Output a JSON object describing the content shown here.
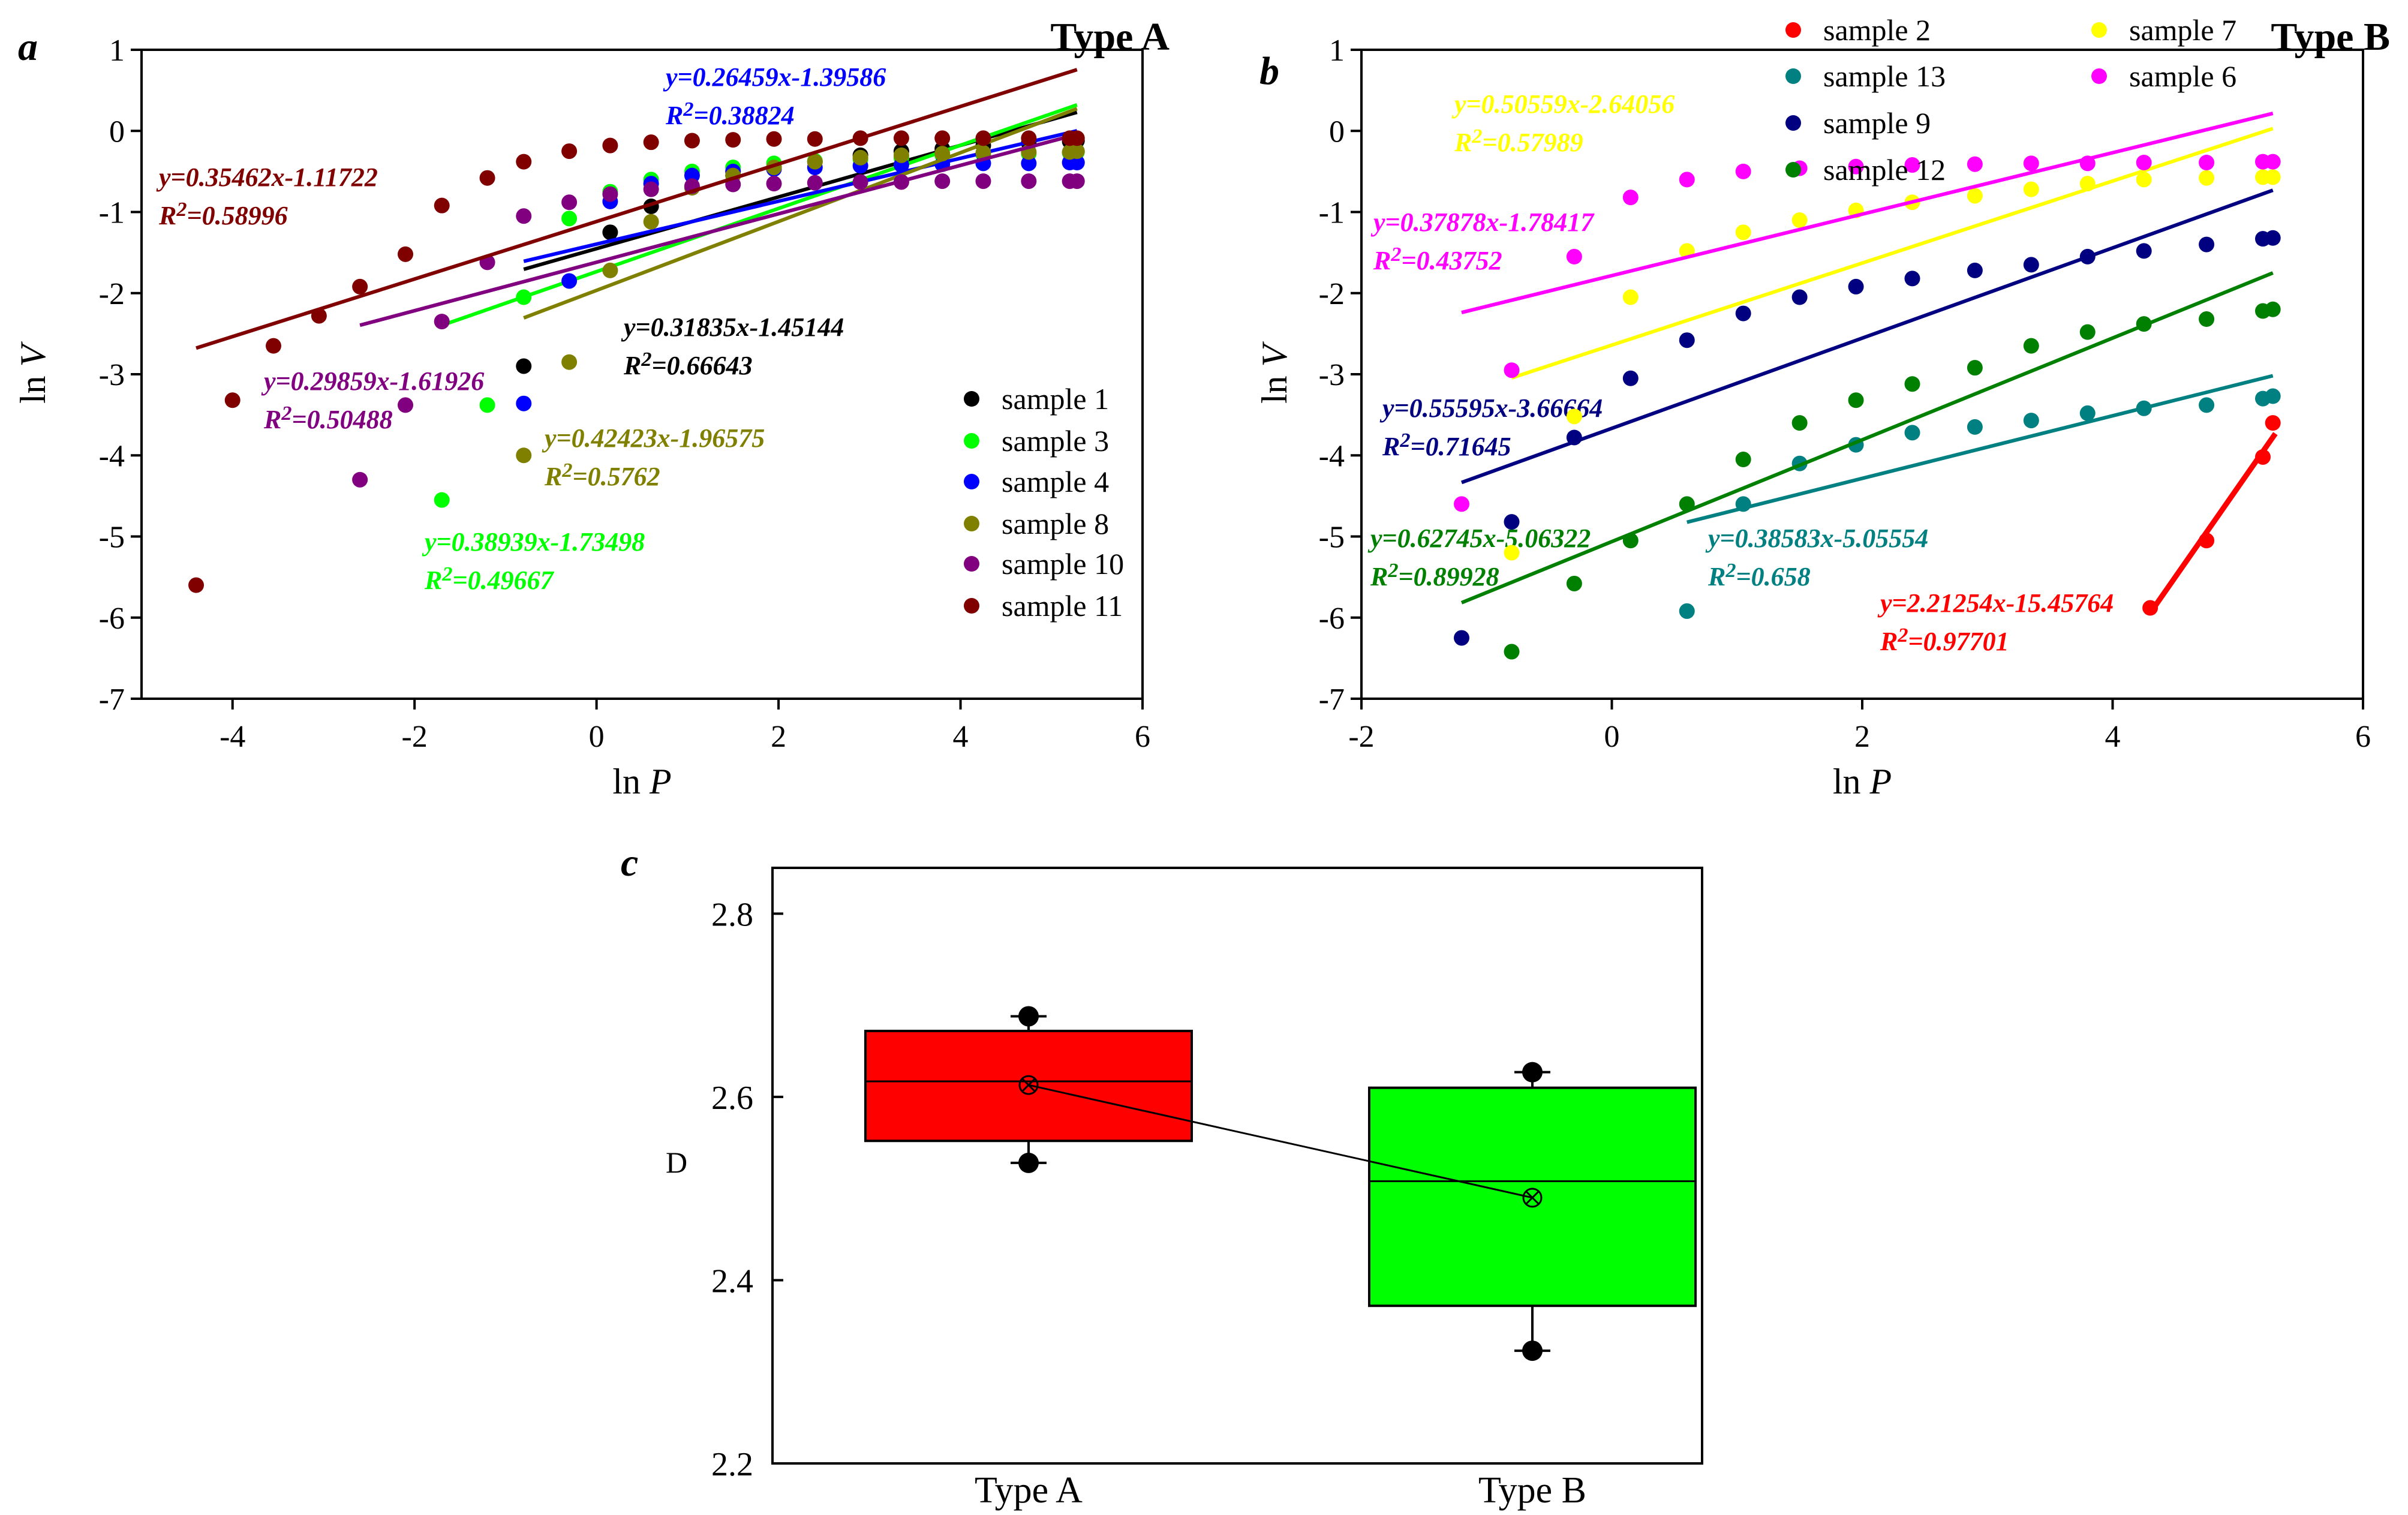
{
  "figure": {
    "panel_letters": [
      "a",
      "b",
      "c"
    ]
  },
  "chart_data": [
    {
      "panel": "a",
      "type": "scatter",
      "title": "Type A",
      "xlabel": "ln P",
      "ylabel": "ln V",
      "xlim": [
        -5,
        6
      ],
      "ylim": [
        -7,
        1
      ],
      "xticks": [
        -4,
        -2,
        0,
        2,
        4,
        6
      ],
      "yticks": [
        1,
        0,
        -1,
        -2,
        -3,
        -4,
        -5,
        -6,
        -7
      ],
      "legend_position": "right",
      "series": [
        {
          "name": "sample 1",
          "color": "#000000",
          "x": [
            -0.8,
            0.15,
            0.6,
            1.05,
            1.5,
            1.95,
            2.4,
            2.9,
            3.35,
            3.8,
            4.25,
            4.75,
            5.2,
            5.28
          ],
          "y": [
            -2.9,
            -1.25,
            -0.93,
            -0.7,
            -0.55,
            -0.45,
            -0.38,
            -0.3,
            -0.25,
            -0.22,
            -0.18,
            -0.15,
            -0.13,
            -0.12
          ],
          "fit": {
            "equation": "y=0.31835x-1.45144",
            "r2": "R2=0.66643",
            "slope": 0.31835,
            "intercept": -1.45144,
            "x_range": [
              -0.8,
              5.28
            ]
          }
        },
        {
          "name": "sample 3",
          "color": "#00ff00",
          "x": [
            -1.7,
            -1.2,
            -0.8,
            -0.3,
            0.15,
            0.6,
            1.05,
            1.5,
            1.95,
            2.4,
            2.9,
            3.35,
            3.8,
            4.25,
            4.75,
            5.2,
            5.28
          ],
          "y": [
            -4.55,
            -3.38,
            -2.05,
            -1.08,
            -0.75,
            -0.6,
            -0.5,
            -0.45,
            -0.4,
            -0.37,
            -0.35,
            -0.33,
            -0.3,
            -0.29,
            -0.28,
            -0.27,
            -0.26
          ],
          "fit": {
            "equation": "y=0.38939x-1.73498",
            "r2": "R2=0.49667",
            "slope": 0.38939,
            "intercept": -1.73498,
            "x_range": [
              -1.7,
              5.28
            ]
          }
        },
        {
          "name": "sample 4",
          "color": "#0000ff",
          "x": [
            -0.8,
            -0.3,
            0.15,
            0.6,
            1.05,
            1.5,
            1.95,
            2.4,
            2.9,
            3.35,
            3.8,
            4.25,
            4.75,
            5.2,
            5.28
          ],
          "y": [
            -3.36,
            -1.85,
            -0.87,
            -0.65,
            -0.55,
            -0.5,
            -0.47,
            -0.45,
            -0.43,
            -0.42,
            -0.41,
            -0.4,
            -0.4,
            -0.39,
            -0.39
          ],
          "fit": {
            "equation": "y=0.26459x-1.39586",
            "r2": "R2=0.38824",
            "slope": 0.26459,
            "intercept": -1.39586,
            "x_range": [
              -0.8,
              5.28
            ]
          }
        },
        {
          "name": "sample 8",
          "color": "#808000",
          "x": [
            -0.8,
            -0.3,
            0.15,
            0.6,
            1.05,
            1.5,
            1.95,
            2.4,
            2.9,
            3.35,
            3.8,
            4.25,
            4.75,
            5.2,
            5.28
          ],
          "y": [
            -4.0,
            -2.85,
            -1.72,
            -1.12,
            -0.7,
            -0.55,
            -0.45,
            -0.38,
            -0.33,
            -0.3,
            -0.28,
            -0.27,
            -0.26,
            -0.26,
            -0.25
          ],
          "fit": {
            "equation": "y=0.42423x-1.96575",
            "r2": "R2=0.5762",
            "slope": 0.42423,
            "intercept": -1.96575,
            "x_range": [
              -0.8,
              5.28
            ]
          }
        },
        {
          "name": "sample 10",
          "color": "#800080",
          "x": [
            -2.6,
            -2.1,
            -1.7,
            -1.2,
            -0.8,
            -0.3,
            0.15,
            0.6,
            1.05,
            1.5,
            1.95,
            2.4,
            2.9,
            3.35,
            3.8,
            4.25,
            4.75,
            5.2,
            5.28
          ],
          "y": [
            -4.3,
            -3.38,
            -2.35,
            -1.62,
            -1.05,
            -0.88,
            -0.78,
            -0.72,
            -0.68,
            -0.66,
            -0.65,
            -0.64,
            -0.63,
            -0.63,
            -0.62,
            -0.62,
            -0.62,
            -0.62,
            -0.62
          ],
          "fit": {
            "equation": "y=0.29859x-1.61926",
            "r2": "R2=0.50488",
            "slope": 0.29859,
            "intercept": -1.61926,
            "x_range": [
              -2.6,
              5.28
            ]
          }
        },
        {
          "name": "sample 11",
          "color": "#800000",
          "x": [
            -4.4,
            -4.0,
            -3.55,
            -3.05,
            -2.6,
            -2.1,
            -1.7,
            -1.2,
            -0.8,
            -0.3,
            0.15,
            0.6,
            1.05,
            1.5,
            1.95,
            2.4,
            2.9,
            3.35,
            3.8,
            4.25,
            4.75,
            5.2,
            5.28
          ],
          "y": [
            -5.6,
            -3.32,
            -2.65,
            -2.28,
            -1.92,
            -1.52,
            -0.92,
            -0.58,
            -0.38,
            -0.25,
            -0.18,
            -0.14,
            -0.12,
            -0.11,
            -0.1,
            -0.1,
            -0.09,
            -0.09,
            -0.09,
            -0.09,
            -0.09,
            -0.09,
            -0.09
          ],
          "fit": {
            "equation": "y=0.35462x-1.11722",
            "r2": "R2=0.58996",
            "slope": 0.35462,
            "intercept": -1.11722,
            "x_range": [
              -4.4,
              5.28
            ]
          }
        }
      ]
    },
    {
      "panel": "b",
      "type": "scatter",
      "title": "Type B",
      "xlabel": "ln P",
      "ylabel": "ln V",
      "xlim": [
        -2,
        6
      ],
      "ylim": [
        -7,
        1
      ],
      "xticks": [
        -2,
        0,
        2,
        4,
        6
      ],
      "yticks": [
        1,
        0,
        -1,
        -2,
        -3,
        -4,
        -5,
        -6,
        -7
      ],
      "legend_position": "top",
      "series": [
        {
          "name": "sample 2",
          "color": "#ff0000",
          "x": [
            4.3,
            4.75,
            5.2,
            5.28
          ],
          "y": [
            -5.88,
            -5.05,
            -4.02,
            -3.6
          ],
          "fit": {
            "equation": "y=2.21254x-15.45764",
            "r2": "R2=0.97701",
            "slope": 2.21254,
            "intercept": -15.45764,
            "x_range": [
              4.3,
              5.3
            ]
          }
        },
        {
          "name": "sample 13",
          "color": "#008080",
          "x": [
            0.6,
            1.05,
            1.5,
            1.95,
            2.4,
            2.9,
            3.35,
            3.8,
            4.25,
            4.75,
            5.2,
            5.28
          ],
          "y": [
            -5.92,
            -4.6,
            -4.1,
            -3.87,
            -3.72,
            -3.65,
            -3.57,
            -3.48,
            -3.42,
            -3.38,
            -3.3,
            -3.27
          ],
          "fit": {
            "equation": "y=0.38583x-5.05554",
            "r2": "R2=0.658",
            "slope": 0.38583,
            "intercept": -5.05554,
            "x_range": [
              0.6,
              5.28
            ]
          }
        },
        {
          "name": "sample 9",
          "color": "#000080",
          "x": [
            -1.2,
            -0.8,
            -0.3,
            0.15,
            0.6,
            1.05,
            1.5,
            1.95,
            2.4,
            2.9,
            3.35,
            3.8,
            4.25,
            4.75,
            5.2,
            5.28
          ],
          "y": [
            -6.25,
            -4.82,
            -3.78,
            -3.05,
            -2.58,
            -2.25,
            -2.05,
            -1.92,
            -1.82,
            -1.72,
            -1.65,
            -1.55,
            -1.48,
            -1.4,
            -1.33,
            -1.32
          ],
          "fit": {
            "equation": "y=0.55595x-3.66664",
            "r2": "R2=0.71645",
            "slope": 0.55595,
            "intercept": -3.66664,
            "x_range": [
              -1.2,
              5.28
            ]
          }
        },
        {
          "name": "sample 12",
          "color": "#008000",
          "x": [
            -0.8,
            -0.3,
            0.15,
            0.6,
            1.05,
            1.5,
            1.95,
            2.4,
            2.9,
            3.35,
            3.8,
            4.25,
            4.75,
            5.2,
            5.28
          ],
          "y": [
            -6.42,
            -5.58,
            -5.05,
            -4.6,
            -4.05,
            -3.6,
            -3.32,
            -3.12,
            -2.92,
            -2.65,
            -2.48,
            -2.38,
            -2.32,
            -2.22,
            -2.2
          ],
          "fit": {
            "equation": "y=0.62745x-5.06322",
            "r2": "R2=0.89928",
            "slope": 0.62745,
            "intercept": -5.06322,
            "x_range": [
              -1.2,
              5.28
            ]
          }
        },
        {
          "name": "sample 7",
          "color": "#ffff00",
          "x": [
            -0.8,
            -0.3,
            0.15,
            0.6,
            1.05,
            1.5,
            1.95,
            2.4,
            2.9,
            3.35,
            3.8,
            4.25,
            4.75,
            5.2,
            5.28
          ],
          "y": [
            -5.2,
            -3.52,
            -2.05,
            -1.48,
            -1.25,
            -1.1,
            -0.98,
            -0.88,
            -0.8,
            -0.72,
            -0.65,
            -0.6,
            -0.58,
            -0.57,
            -0.57
          ],
          "fit": {
            "equation": "y=0.50559x-2.64056",
            "r2": "R2=0.57989",
            "slope": 0.50559,
            "intercept": -2.64056,
            "x_range": [
              -0.8,
              5.28
            ]
          }
        },
        {
          "name": "sample 6",
          "color": "#ff00ff",
          "x": [
            -1.2,
            -0.8,
            -0.3,
            0.15,
            0.6,
            1.05,
            1.5,
            1.95,
            2.4,
            2.9,
            3.35,
            3.8,
            4.25,
            4.75,
            5.2,
            5.28
          ],
          "y": [
            -4.6,
            -2.95,
            -1.55,
            -0.82,
            -0.6,
            -0.5,
            -0.46,
            -0.44,
            -0.42,
            -0.41,
            -0.4,
            -0.4,
            -0.39,
            -0.39,
            -0.38,
            -0.38
          ],
          "fit": {
            "equation": "y=0.37878x-1.78417",
            "r2": "R2=0.43752",
            "slope": 0.37878,
            "intercept": -1.78417,
            "x_range": [
              -1.2,
              5.28
            ]
          }
        }
      ]
    },
    {
      "panel": "c",
      "type": "box",
      "title": "",
      "xlabel": "",
      "ylabel": "D",
      "ylim": [
        2.2,
        2.85
      ],
      "yticks": [
        2.2,
        2.4,
        2.6,
        2.8
      ],
      "categories": [
        "Type A",
        "Type B"
      ],
      "boxes": [
        {
          "category": "Type A",
          "color": "#ff0000",
          "min": 2.528,
          "q1": 2.552,
          "median": 2.617,
          "mean": 2.613,
          "q3": 2.672,
          "max": 2.688
        },
        {
          "category": "Type B",
          "color": "#00ff00",
          "min": 2.323,
          "q1": 2.372,
          "median": 2.508,
          "mean": 2.49,
          "q3": 2.61,
          "max": 2.627
        }
      ],
      "mean_line": true
    }
  ]
}
